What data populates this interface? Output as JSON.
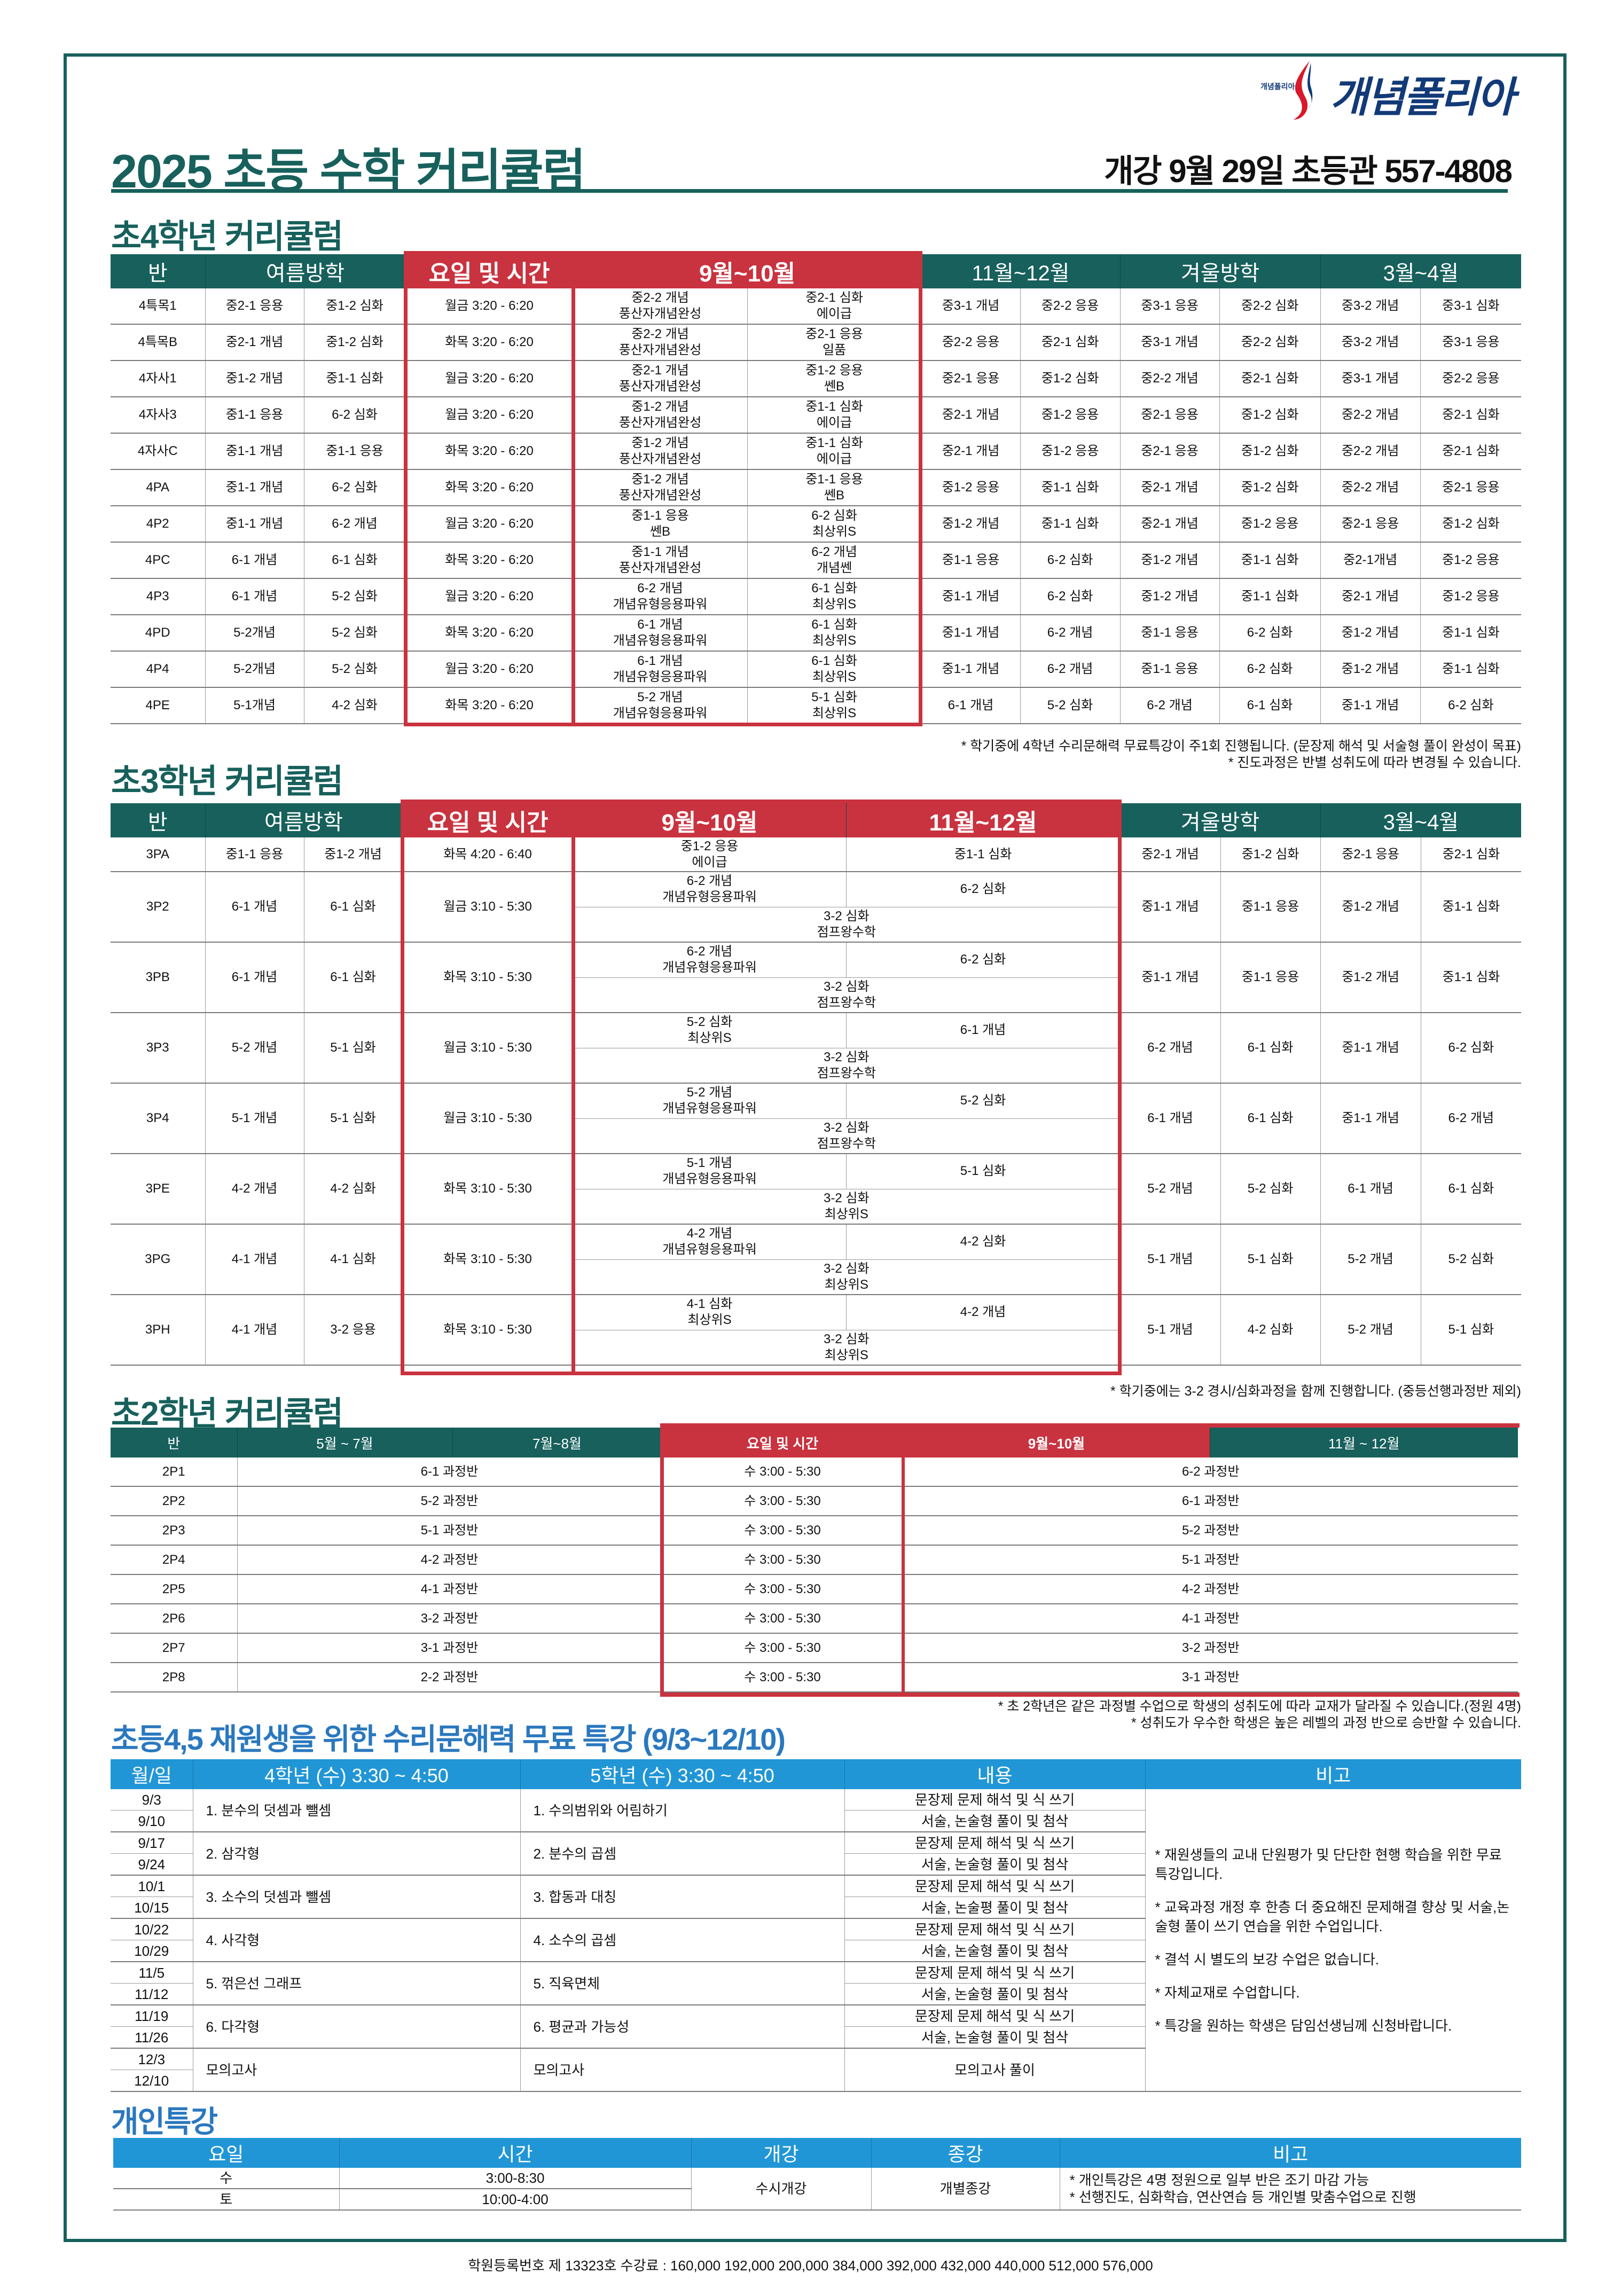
{
  "header": {
    "title": "2025 초등 수학 커리큘럼",
    "info": "개강 9월 29일 초등관 557-4808",
    "logo_text": "개념폴리아",
    "logo_small": "개념폴리아"
  },
  "colors": {
    "green": "#17605c",
    "red": "#c9323f",
    "blue": "#2196d6",
    "blue_title": "#2a78bf"
  },
  "grade4": {
    "title": "초4학년 커리큘럼",
    "headers": [
      "반",
      "여름방학",
      "요일 및 시간",
      "9월~10월",
      "11월~12월",
      "겨울방학",
      "3월~4월"
    ],
    "rows": [
      {
        "class": "4특목1",
        "summer": [
          "중2-1 응용",
          "중1-2 심화"
        ],
        "time": "월금 3:20 - 6:20",
        "sepoct": [
          [
            "중2-2 개념",
            "풍산자개념완성"
          ],
          [
            "중2-1 심화",
            "에이급"
          ]
        ],
        "novdec": [
          "중3-1 개념",
          "중2-2 응용"
        ],
        "winter": [
          "중3-1 응용",
          "중2-2 심화"
        ],
        "marapr": [
          "중3-2 개념",
          "중3-1 심화"
        ]
      },
      {
        "class": "4특목B",
        "summer": [
          "중2-1 개념",
          "중1-2 심화"
        ],
        "time": "화목 3:20 - 6:20",
        "sepoct": [
          [
            "중2-2 개념",
            "풍산자개념완성"
          ],
          [
            "중2-1 응용",
            "일품"
          ]
        ],
        "novdec": [
          "중2-2 응용",
          "중2-1 심화"
        ],
        "winter": [
          "중3-1 개념",
          "중2-2 심화"
        ],
        "marapr": [
          "중3-2 개념",
          "중3-1 응용"
        ]
      },
      {
        "class": "4자사1",
        "summer": [
          "중1-2 개념",
          "중1-1 심화"
        ],
        "time": "월금 3:20 - 6:20",
        "sepoct": [
          [
            "중2-1 개념",
            "풍산자개념완성"
          ],
          [
            "중1-2 응용",
            "쎈B"
          ]
        ],
        "novdec": [
          "중2-1 응용",
          "중1-2 심화"
        ],
        "winter": [
          "중2-2 개념",
          "중2-1 심화"
        ],
        "marapr": [
          "중3-1 개념",
          "중2-2 응용"
        ]
      },
      {
        "class": "4자사3",
        "summer": [
          "중1-1 응용",
          "6-2 심화"
        ],
        "time": "월금 3:20 - 6:20",
        "sepoct": [
          [
            "중1-2 개념",
            "풍산자개념완성"
          ],
          [
            "중1-1 심화",
            "에이급"
          ]
        ],
        "novdec": [
          "중2-1 개념",
          "중1-2 응용"
        ],
        "winter": [
          "중2-1 응용",
          "중1-2 심화"
        ],
        "marapr": [
          "중2-2 개념",
          "중2-1 심화"
        ]
      },
      {
        "class": "4자사C",
        "summer": [
          "중1-1 개념",
          "중1-1 응용"
        ],
        "time": "화목 3:20 - 6:20",
        "sepoct": [
          [
            "중1-2 개념",
            "풍산자개념완성"
          ],
          [
            "중1-1 심화",
            "에이급"
          ]
        ],
        "novdec": [
          "중2-1 개념",
          "중1-2 응용"
        ],
        "winter": [
          "중2-1 응용",
          "중1-2 심화"
        ],
        "marapr": [
          "중2-2 개념",
          "중2-1 심화"
        ]
      },
      {
        "class": "4PA",
        "summer": [
          "중1-1 개념",
          "6-2 심화"
        ],
        "time": "화목 3:20 - 6:20",
        "sepoct": [
          [
            "중1-2 개념",
            "풍산자개념완성"
          ],
          [
            "중1-1 응용",
            "쎈B"
          ]
        ],
        "novdec": [
          "중1-2 응용",
          "중1-1 심화"
        ],
        "winter": [
          "중2-1 개념",
          "중1-2 심화"
        ],
        "marapr": [
          "중2-2 개념",
          "중2-1 응용"
        ]
      },
      {
        "class": "4P2",
        "summer": [
          "중1-1 개념",
          "6-2 개념"
        ],
        "time": "월금 3:20 - 6:20",
        "sepoct": [
          [
            "중1-1 응용",
            "쎈B"
          ],
          [
            "6-2 심화",
            "최상위S"
          ]
        ],
        "novdec": [
          "중1-2 개념",
          "중1-1 심화"
        ],
        "winter": [
          "중2-1 개념",
          "중1-2 응용"
        ],
        "marapr": [
          "중2-1 응용",
          "중1-2 심화"
        ]
      },
      {
        "class": "4PC",
        "summer": [
          "6-1 개념",
          "6-1 심화"
        ],
        "time": "화목 3:20 - 6:20",
        "sepoct": [
          [
            "중1-1 개념",
            "풍산자개념완성"
          ],
          [
            "6-2 개념",
            "개념쎈"
          ]
        ],
        "novdec": [
          "중1-1 응용",
          "6-2 심화"
        ],
        "winter": [
          "중1-2 개념",
          "중1-1 심화"
        ],
        "marapr": [
          "중2-1개념",
          "중1-2 응용"
        ]
      },
      {
        "class": "4P3",
        "summer": [
          "6-1 개념",
          "5-2 심화"
        ],
        "time": "월금 3:20 - 6:20",
        "sepoct": [
          [
            "6-2 개념",
            "개념유형응용파워"
          ],
          [
            "6-1 심화",
            "최상위S"
          ]
        ],
        "novdec": [
          "중1-1 개념",
          "6-2 심화"
        ],
        "winter": [
          "중1-2 개념",
          "중1-1 심화"
        ],
        "marapr": [
          "중2-1 개념",
          "중1-2 응용"
        ]
      },
      {
        "class": "4PD",
        "summer": [
          "5-2개념",
          "5-2 심화"
        ],
        "time": "화목 3:20 - 6:20",
        "sepoct": [
          [
            "6-1 개념",
            "개념유형응용파워"
          ],
          [
            "6-1 심화",
            "최상위S"
          ]
        ],
        "novdec": [
          "중1-1 개념",
          "6-2 개념"
        ],
        "winter": [
          "중1-1 응용",
          "6-2 심화"
        ],
        "marapr": [
          "중1-2 개념",
          "중1-1 심화"
        ]
      },
      {
        "class": "4P4",
        "summer": [
          "5-2개념",
          "5-2 심화"
        ],
        "time": "월금 3:20 - 6:20",
        "sepoct": [
          [
            "6-1 개념",
            "개념유형응용파워"
          ],
          [
            "6-1 심화",
            "최상위S"
          ]
        ],
        "novdec": [
          "중1-1 개념",
          "6-2 개념"
        ],
        "winter": [
          "중1-1 응용",
          "6-2 심화"
        ],
        "marapr": [
          "중1-2 개념",
          "중1-1 심화"
        ]
      },
      {
        "class": "4PE",
        "summer": [
          "5-1개념",
          "4-2 심화"
        ],
        "time": "화목 3:20 - 6:20",
        "sepoct": [
          [
            "5-2 개념",
            "개념유형응용파워"
          ],
          [
            "5-1 심화",
            "최상위S"
          ]
        ],
        "novdec": [
          "6-1 개념",
          "5-2 심화"
        ],
        "winter": [
          "6-2 개념",
          "6-1 심화"
        ],
        "marapr": [
          "중1-1 개념",
          "6-2 심화"
        ]
      }
    ],
    "notes": [
      "* 학기중에 4학년 수리문해력 무료특강이 주1회 진행됩니다. (문장제 해석 및 서술형 풀이 완성이 목표)",
      "* 진도과정은 반별 성취도에 따라 변경될 수 있습니다."
    ]
  },
  "grade3": {
    "title": "초3학년 커리큘럼",
    "headers": [
      "반",
      "여름방학",
      "요일 및 시간",
      "9월~10월",
      "11월~12월",
      "겨울방학",
      "3월~4월"
    ],
    "rows": [
      {
        "class": "3PA",
        "summer": [
          "중1-1 응용",
          "중1-2 개념"
        ],
        "time": "화목 4:20 - 6:40",
        "sepoct": [
          "중1-2 응용",
          "에이급"
        ],
        "novdec": "중1-1 심화",
        "common": null,
        "winter": [
          "중2-1 개념",
          "중1-2 심화"
        ],
        "marapr": [
          "중2-1 응용",
          "중2-1 심화"
        ]
      },
      {
        "class": "3P2",
        "summer": [
          "6-1 개념",
          "6-1 심화"
        ],
        "time": "월금 3:10 - 5:30",
        "sepoct": [
          "6-2 개념",
          "개념유형응용파워"
        ],
        "novdec": "6-2 심화",
        "common": [
          "3-2 심화",
          "점프왕수학"
        ],
        "winter": [
          "중1-1 개념",
          "중1-1 응용"
        ],
        "marapr": [
          "중1-2 개념",
          "중1-1 심화"
        ]
      },
      {
        "class": "3PB",
        "summer": [
          "6-1 개념",
          "6-1 심화"
        ],
        "time": "화목 3:10 - 5:30",
        "sepoct": [
          "6-2 개념",
          "개념유형응용파워"
        ],
        "novdec": "6-2 심화",
        "common": [
          "3-2 심화",
          "점프왕수학"
        ],
        "winter": [
          "중1-1 개념",
          "중1-1 응용"
        ],
        "marapr": [
          "중1-2 개념",
          "중1-1 심화"
        ]
      },
      {
        "class": "3P3",
        "summer": [
          "5-2 개념",
          "5-1 심화"
        ],
        "time": "월금 3:10 - 5:30",
        "sepoct": [
          "5-2 심화",
          "최상위S"
        ],
        "novdec": "6-1 개념",
        "common": [
          "3-2 심화",
          "점프왕수학"
        ],
        "winter": [
          "6-2 개념",
          "6-1 심화"
        ],
        "marapr": [
          "중1-1 개념",
          "6-2 심화"
        ]
      },
      {
        "class": "3P4",
        "summer": [
          "5-1 개념",
          "5-1 심화"
        ],
        "time": "월금 3:10 - 5:30",
        "sepoct": [
          "5-2 개념",
          "개념유형응용파워"
        ],
        "novdec": "5-2 심화",
        "common": [
          "3-2 심화",
          "점프왕수학"
        ],
        "winter": [
          "6-1 개념",
          "6-1 심화"
        ],
        "marapr": [
          "중1-1 개념",
          "6-2 개념"
        ]
      },
      {
        "class": "3PE",
        "summer": [
          "4-2 개념",
          "4-2 심화"
        ],
        "time": "화목 3:10 - 5:30",
        "sepoct": [
          "5-1 개념",
          "개념유형응용파워"
        ],
        "novdec": "5-1 심화",
        "common": [
          "3-2 심화",
          "최상위S"
        ],
        "winter": [
          "5-2 개념",
          "5-2 심화"
        ],
        "marapr": [
          "6-1 개념",
          "6-1 심화"
        ]
      },
      {
        "class": "3PG",
        "summer": [
          "4-1 개념",
          "4-1 심화"
        ],
        "time": "화목 3:10 - 5:30",
        "sepoct": [
          "4-2 개념",
          "개념유형응용파워"
        ],
        "novdec": "4-2 심화",
        "common": [
          "3-2 심화",
          "최상위S"
        ],
        "winter": [
          "5-1 개념",
          "5-1 심화"
        ],
        "marapr": [
          "5-2 개념",
          "5-2 심화"
        ]
      },
      {
        "class": "3PH",
        "summer": [
          "4-1 개념",
          "3-2 응용"
        ],
        "time": "화목 3:10 - 5:30",
        "sepoct": [
          "4-1 심화",
          "최상위S"
        ],
        "novdec": "4-2 개념",
        "common": [
          "3-2 심화",
          "최상위S"
        ],
        "winter": [
          "5-1 개념",
          "4-2 심화"
        ],
        "marapr": [
          "5-2 개념",
          "5-1 심화"
        ]
      }
    ],
    "notes": [
      "* 학기중에는 3-2 경시/심화과정을 함께 진행합니다. (중등선행과정반 제외)"
    ]
  },
  "grade2": {
    "title": "초2학년 커리큘럼",
    "headers": [
      "반",
      "5월 ~ 7월",
      "7월~8월",
      "요일 및 시간",
      "9월~10월",
      "11월 ~ 12월"
    ],
    "rows": [
      {
        "class": "2P1",
        "summer": "6-1 과정반",
        "time": "수 3:00 - 5:30",
        "fall": "6-2 과정반"
      },
      {
        "class": "2P2",
        "summer": "5-2 과정반",
        "time": "수 3:00 - 5:30",
        "fall": "6-1 과정반"
      },
      {
        "class": "2P3",
        "summer": "5-1 과정반",
        "time": "수 3:00 - 5:30",
        "fall": "5-2 과정반"
      },
      {
        "class": "2P4",
        "summer": "4-2 과정반",
        "time": "수 3:00 - 5:30",
        "fall": "5-1 과정반"
      },
      {
        "class": "2P5",
        "summer": "4-1 과정반",
        "time": "수 3:00 - 5:30",
        "fall": "4-2 과정반"
      },
      {
        "class": "2P6",
        "summer": "3-2 과정반",
        "time": "수 3:00 - 5:30",
        "fall": "4-1 과정반"
      },
      {
        "class": "2P7",
        "summer": "3-1 과정반",
        "time": "수 3:00 - 5:30",
        "fall": "3-2 과정반"
      },
      {
        "class": "2P8",
        "summer": "2-2 과정반",
        "time": "수 3:00 - 5:30",
        "fall": "3-1 과정반"
      }
    ],
    "notes": [
      "* 초 2학년은 같은 과정별 수업으로 학생의 성취도에 따라 교재가 달라질 수 있습니다.(정원 4명)",
      "* 성취도가 우수한 학생은 높은 레벨의 과정 반으로 승반할 수 있습니다."
    ]
  },
  "special": {
    "title": "초등4,5 재원생을 위한 수리문해력 무료 특강 (9/3~12/10)",
    "headers": [
      "월/일",
      "4학년 (수) 3:30 ~ 4:50",
      "5학년 (수) 3:30 ~ 4:50",
      "내용",
      "비고"
    ],
    "rows": [
      {
        "dates": [
          "9/3",
          "9/10"
        ],
        "g4": "1. 분수의 덧셈과 뺄셈",
        "g5": "1. 수의범위와 어림하기",
        "content": [
          "문장제 문제 해석 및 식 쓰기",
          "서술, 논술형 풀이 및 첨삭"
        ]
      },
      {
        "dates": [
          "9/17",
          "9/24"
        ],
        "g4": "2. 삼각형",
        "g5": "2. 분수의 곱셈",
        "content": [
          "문장제 문제 해석 및 식 쓰기",
          "서술, 논술형 풀이 및 첨삭"
        ]
      },
      {
        "dates": [
          "10/1",
          "10/15"
        ],
        "g4": "3. 소수의 덧셈과 뺄셈",
        "g5": "3. 합동과 대칭",
        "content": [
          "문장제 문제 해석 및 식 쓰기",
          "서술, 논술평 풀이 및 첨삭"
        ]
      },
      {
        "dates": [
          "10/22",
          "10/29"
        ],
        "g4": "4. 사각형",
        "g5": "4. 소수의 곱셈",
        "content": [
          "문장제 문제 해석 및 식 쓰기",
          "서술, 논술형 풀이 및 첨삭"
        ]
      },
      {
        "dates": [
          "11/5",
          "11/12"
        ],
        "g4": "5. 꺾은선 그래프",
        "g5": "5. 직육면체",
        "content": [
          "문장제 문제 해석 및 식 쓰기",
          "서술, 논술형 풀이 및 첨삭"
        ]
      },
      {
        "dates": [
          "11/19",
          "11/26"
        ],
        "g4": "6. 다각형",
        "g5": "6. 평균과 가능성",
        "content": [
          "문장제 문제 해석 및 식 쓰기",
          "서술, 논술형 풀이 및 첨삭"
        ]
      },
      {
        "dates": [
          "12/3",
          "12/10"
        ],
        "g4": "모의고사",
        "g5": "모의고사",
        "content": [
          "모의고사 풀이"
        ]
      }
    ],
    "memo": [
      "* 재원생들의 교내 단원평가 및 단단한 현행 학습을 위한 무료특강입니다.",
      "* 교육과정 개정 후 한층 더 중요해진 문제해결 향상 및 서술,논술형 풀이 쓰기 연습을 위한 수업입니다.",
      "* 결석 시 별도의 보강 수업은 없습니다.",
      "* 자체교재로 수업합니다.",
      "* 특강을 원하는 학생은 담임선생님께 신청바랍니다."
    ]
  },
  "personal": {
    "title": "개인특강",
    "headers": [
      "요일",
      "시간",
      "개강",
      "종강",
      "비고"
    ],
    "rows": [
      {
        "day": "수",
        "time": "3:00-8:30"
      },
      {
        "day": "토",
        "time": "10:00-4:00"
      }
    ],
    "start": "수시개강",
    "end": "개별종강",
    "memo": [
      "* 개인특강은 4명 정원으로 일부 반은 조기 마감 가능",
      "* 선행진도, 심화학습, 연산연습 등 개인별 맞춤수업으로 진행"
    ]
  },
  "footer": "학원등록번호 제 13323호 수강료 : 160,000   192,000   200,000   384,000   392,000   432,000   440,000   512,000   576,000"
}
